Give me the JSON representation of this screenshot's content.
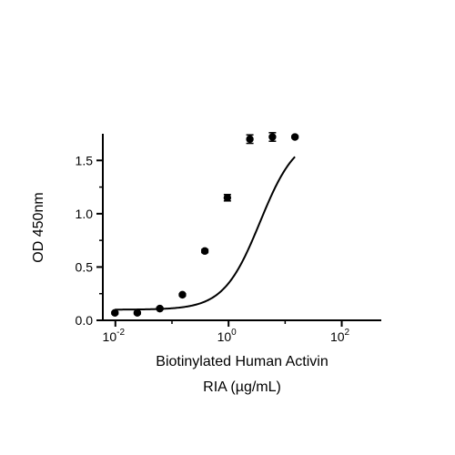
{
  "chart_data": {
    "type": "scatter",
    "title": "",
    "xlabel_lines": [
      "Biotinylated Human Activin",
      "RIA (µg/mL)"
    ],
    "ylabel": "OD 450nm",
    "x_scale": "log10",
    "xlim": [
      0.006,
      500
    ],
    "ylim": [
      0,
      1.75
    ],
    "x_ticks": [
      {
        "value": 0.01,
        "base": "10",
        "exp": "-2"
      },
      {
        "value": 1,
        "base": "10",
        "exp": "0"
      },
      {
        "value": 100,
        "base": "10",
        "exp": "2"
      }
    ],
    "y_ticks": [
      {
        "value": 0,
        "label": "0.0"
      },
      {
        "value": 0.5,
        "label": "0.5"
      },
      {
        "value": 1.0,
        "label": "1.0"
      },
      {
        "value": 1.5,
        "label": "1.5"
      }
    ],
    "grid": false,
    "legend": "none",
    "series": [
      {
        "points": [
          {
            "x": 0.0098,
            "y": 0.07,
            "err": 0.01
          },
          {
            "x": 0.0244,
            "y": 0.07,
            "err": 0.01
          },
          {
            "x": 0.061,
            "y": 0.11,
            "err": 0.01
          },
          {
            "x": 0.153,
            "y": 0.24,
            "err": 0.01
          },
          {
            "x": 0.381,
            "y": 0.65,
            "err": 0.015
          },
          {
            "x": 0.953,
            "y": 1.15,
            "err": 0.03
          },
          {
            "x": 2.38,
            "y": 1.7,
            "err": 0.04
          },
          {
            "x": 5.96,
            "y": 1.72,
            "err": 0.04
          },
          {
            "x": 14.9,
            "y": 1.72,
            "err": 0.01
          }
        ],
        "fit": {
          "model": "4PL",
          "bottom": 0.1,
          "top": 1.745,
          "ec50": 3.6,
          "hill": 1.35
        }
      }
    ],
    "style": {
      "color": "#000000"
    }
  }
}
